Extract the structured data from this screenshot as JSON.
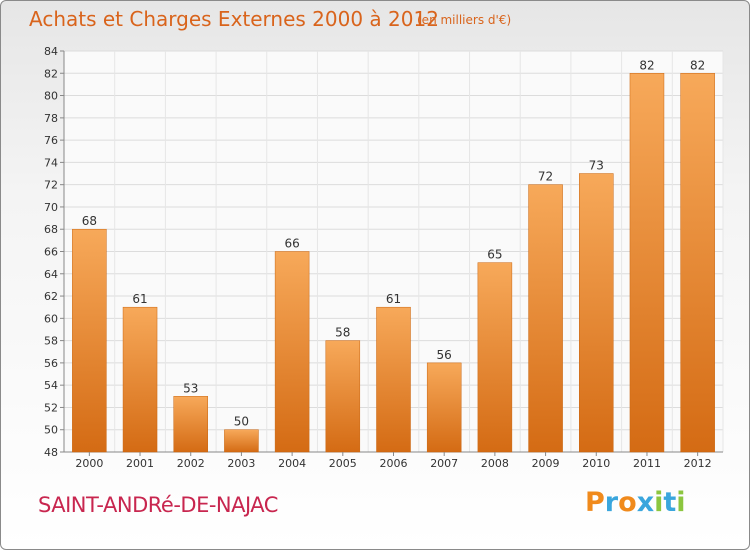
{
  "title": "Achats et Charges Externes 2000 à 2012",
  "unit_note": "(en milliers d'€)",
  "location": "SAINT-ANDRé-DE-NAJAC",
  "logo": {
    "letters": [
      "P",
      "r",
      "o",
      "x",
      "i",
      "t",
      "i"
    ],
    "colors": [
      "#f08a1c",
      "#3aa6dd",
      "#f08a1c",
      "#3aa6dd",
      "#8cc63f",
      "#3aa6dd",
      "#8cc63f"
    ]
  },
  "colors": {
    "bar_top": "#f7a95a",
    "bar_bottom": "#d46b14",
    "title": "#d9641c",
    "location": "#c8264f"
  },
  "chart_data": {
    "type": "bar",
    "categories": [
      "2000",
      "2001",
      "2002",
      "2003",
      "2004",
      "2005",
      "2006",
      "2007",
      "2008",
      "2009",
      "2010",
      "2011",
      "2012"
    ],
    "values": [
      68,
      61,
      53,
      50,
      66,
      58,
      61,
      56,
      65,
      72,
      73,
      82,
      82
    ],
    "ylim": [
      48,
      84
    ],
    "yticks": [
      48,
      50,
      52,
      54,
      56,
      58,
      60,
      62,
      64,
      66,
      68,
      70,
      72,
      74,
      76,
      78,
      80,
      82,
      84
    ],
    "grid": true,
    "data_labels": true
  }
}
